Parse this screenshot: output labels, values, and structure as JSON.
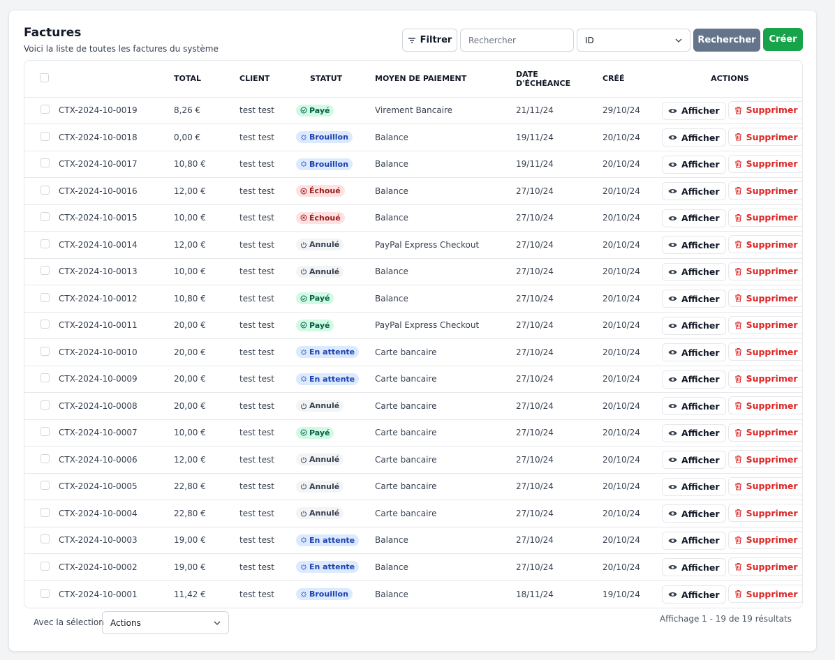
{
  "header": {
    "title": "Factures",
    "subtitle": "Voici la liste de toutes les factures du système"
  },
  "toolbar": {
    "filter": "Filtrer",
    "search_placeholder": "Rechercher",
    "field": "ID",
    "search_button": "Rechercher",
    "create_button": "Créer"
  },
  "table": {
    "columns": [
      "TOTAL",
      "CLIENT",
      "STATUT",
      "MOYEN DE PAIEMENT",
      "DATE D'ÉCHÉANCE",
      "CRÉÉ",
      "ACTIONS"
    ],
    "actions": {
      "view": "Afficher",
      "delete": "Supprimer"
    },
    "status_styles": {
      "Payé": {
        "bg": "#d1fae5",
        "fg": "#065f46",
        "icon": "check"
      },
      "Brouillon": {
        "bg": "#dbeafe",
        "fg": "#1e40af",
        "icon": "spinner"
      },
      "En attente": {
        "bg": "#dbeafe",
        "fg": "#1e40af",
        "icon": "spinner"
      },
      "Échoué": {
        "bg": "#fee2e2",
        "fg": "#991b1b",
        "icon": "x"
      },
      "Annulé": {
        "bg": "#f3f4f6",
        "fg": "#374151",
        "icon": "power"
      }
    },
    "rows": [
      [
        "CTX-2024-10-0019",
        "8,26 €",
        "test test",
        "Payé",
        "Virement Bancaire",
        "21/11/24",
        "29/10/24"
      ],
      [
        "CTX-2024-10-0018",
        "0,00 €",
        "test test",
        "Brouillon",
        "Balance",
        "19/11/24",
        "20/10/24"
      ],
      [
        "CTX-2024-10-0017",
        "10,80 €",
        "test test",
        "Brouillon",
        "Balance",
        "19/11/24",
        "20/10/24"
      ],
      [
        "CTX-2024-10-0016",
        "12,00 €",
        "test test",
        "Échoué",
        "Balance",
        "27/10/24",
        "20/10/24"
      ],
      [
        "CTX-2024-10-0015",
        "10,00 €",
        "test test",
        "Échoué",
        "Balance",
        "27/10/24",
        "20/10/24"
      ],
      [
        "CTX-2024-10-0014",
        "12,00 €",
        "test test",
        "Annulé",
        "PayPal Express Checkout",
        "27/10/24",
        "20/10/24"
      ],
      [
        "CTX-2024-10-0013",
        "10,00 €",
        "test test",
        "Annulé",
        "Balance",
        "27/10/24",
        "20/10/24"
      ],
      [
        "CTX-2024-10-0012",
        "10,80 €",
        "test test",
        "Payé",
        "Balance",
        "27/10/24",
        "20/10/24"
      ],
      [
        "CTX-2024-10-0011",
        "20,00 €",
        "test test",
        "Payé",
        "PayPal Express Checkout",
        "27/10/24",
        "20/10/24"
      ],
      [
        "CTX-2024-10-0010",
        "20,00 €",
        "test test",
        "En attente",
        "Carte bancaire",
        "27/10/24",
        "20/10/24"
      ],
      [
        "CTX-2024-10-0009",
        "20,00 €",
        "test test",
        "En attente",
        "Carte bancaire",
        "27/10/24",
        "20/10/24"
      ],
      [
        "CTX-2024-10-0008",
        "20,00 €",
        "test test",
        "Annulé",
        "Carte bancaire",
        "27/10/24",
        "20/10/24"
      ],
      [
        "CTX-2024-10-0007",
        "10,00 €",
        "test test",
        "Payé",
        "Carte bancaire",
        "27/10/24",
        "20/10/24"
      ],
      [
        "CTX-2024-10-0006",
        "12,00 €",
        "test test",
        "Annulé",
        "Carte bancaire",
        "27/10/24",
        "20/10/24"
      ],
      [
        "CTX-2024-10-0005",
        "22,80 €",
        "test test",
        "Annulé",
        "Carte bancaire",
        "27/10/24",
        "20/10/24"
      ],
      [
        "CTX-2024-10-0004",
        "22,80 €",
        "test test",
        "Annulé",
        "Carte bancaire",
        "27/10/24",
        "20/10/24"
      ],
      [
        "CTX-2024-10-0003",
        "19,00 €",
        "test test",
        "En attente",
        "Balance",
        "27/10/24",
        "20/10/24"
      ],
      [
        "CTX-2024-10-0002",
        "19,00 €",
        "test test",
        "En attente",
        "Balance",
        "27/10/24",
        "20/10/24"
      ],
      [
        "CTX-2024-10-0001",
        "11,42 €",
        "test test",
        "Brouillon",
        "Balance",
        "18/11/24",
        "19/10/24"
      ]
    ]
  },
  "footer": {
    "selection_label": "Avec la sélection",
    "bulk_action": "Actions",
    "pagination": "Affichage 1 - 19 de 19 résultats"
  }
}
